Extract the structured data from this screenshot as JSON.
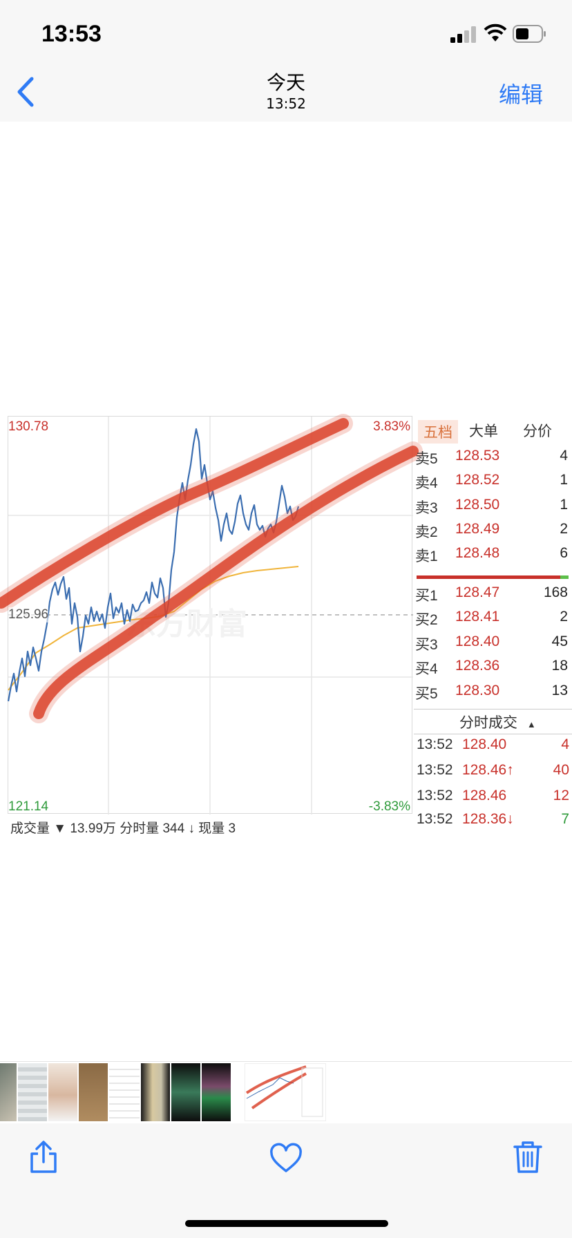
{
  "status_bar": {
    "time": "13:53"
  },
  "nav": {
    "back": "back",
    "title": "今天",
    "subtitle": "13:52",
    "edit": "编辑"
  },
  "stock": {
    "price_high": "130.78",
    "price_low": "121.14",
    "price_base": "125.96",
    "pct_high": "3.83%",
    "pct_low": "-3.83%",
    "watermark": "东方财富",
    "volume_bar_text": "成交量 ▼ 13.99万 分时量 344 ↓ 现量 3",
    "tabs": [
      "五档",
      "大单",
      "分价"
    ],
    "sell": [
      {
        "label": "卖5",
        "price": "128.53",
        "vol": "4"
      },
      {
        "label": "卖4",
        "price": "128.52",
        "vol": "1"
      },
      {
        "label": "卖3",
        "price": "128.50",
        "vol": "1"
      },
      {
        "label": "卖2",
        "price": "128.49",
        "vol": "2"
      },
      {
        "label": "卖1",
        "price": "128.48",
        "vol": "6"
      }
    ],
    "buy": [
      {
        "label": "买1",
        "price": "128.47",
        "vol": "168"
      },
      {
        "label": "买2",
        "price": "128.41",
        "vol": "2"
      },
      {
        "label": "买3",
        "price": "128.40",
        "vol": "45"
      },
      {
        "label": "买4",
        "price": "128.36",
        "vol": "18"
      },
      {
        "label": "买5",
        "price": "128.30",
        "vol": "13"
      }
    ],
    "trades_title": "分时成交",
    "trades": [
      {
        "time": "13:52",
        "price": "128.40",
        "vol": "4",
        "price_color": "#c8302a",
        "vol_color": "#c8302a"
      },
      {
        "time": "13:52",
        "price": "128.46↑",
        "vol": "40",
        "price_color": "#c8302a",
        "vol_color": "#c8302a"
      },
      {
        "time": "13:52",
        "price": "128.46",
        "vol": "12",
        "price_color": "#c8302a",
        "vol_color": "#c8302a"
      },
      {
        "time": "13:52",
        "price": "128.36↓",
        "vol": "7",
        "price_color": "#c8302a",
        "vol_color": "#2e9a3a"
      }
    ]
  },
  "colors": {
    "accent": "#2f7bf5",
    "up": "#c8302a",
    "down": "#2e9a3a",
    "price_line": "#3a6db0",
    "avg_line": "#f0b43a",
    "marker": "#d83a22"
  },
  "toolbar": {
    "share": "share",
    "favorite": "favorite",
    "delete": "delete"
  }
}
